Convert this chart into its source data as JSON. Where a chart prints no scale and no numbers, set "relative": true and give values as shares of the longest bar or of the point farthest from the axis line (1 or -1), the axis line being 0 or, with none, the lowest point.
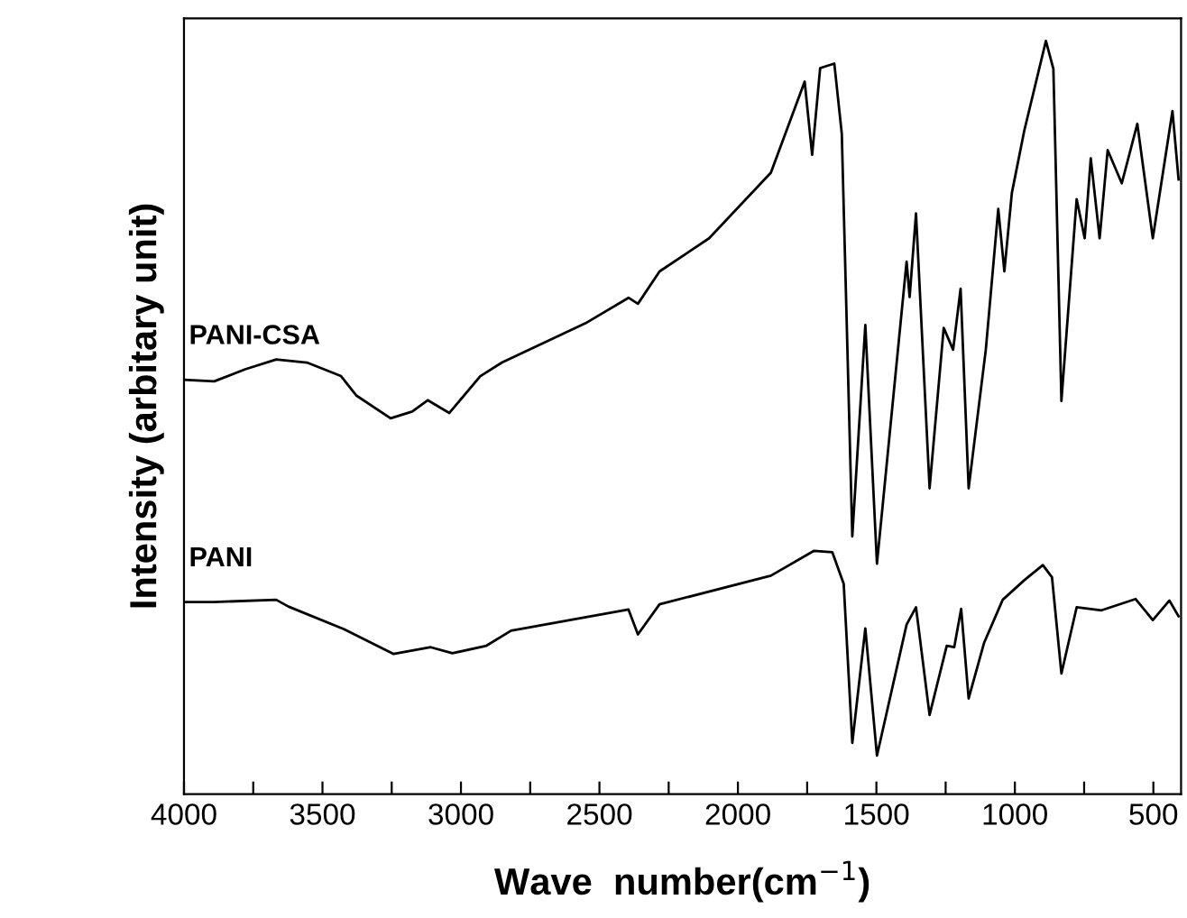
{
  "chart_data": {
    "type": "line",
    "relative": true,
    "xlabel": "Wave  number(cm$^{−1}$)",
    "ylabel": "Intensity (arbitary unit)",
    "xlim": [
      4000,
      400
    ],
    "xticks": [
      4000,
      {
        "value": 3750,
        "label": null
      },
      3500,
      {
        "value": 3250,
        "label": null
      },
      3000,
      {
        "value": 2750,
        "label": null
      },
      2500,
      {
        "value": 2250,
        "label": null
      },
      2000,
      {
        "value": 1750,
        "label": null
      },
      1500,
      {
        "value": 1250,
        "label": null
      },
      1000,
      {
        "value": 750,
        "label": null
      },
      500
    ],
    "grid": false,
    "legend": false,
    "marker": "none",
    "line_style": "solid",
    "series": [
      {
        "name": "PANI-CSA",
        "color": "#000000",
        "x": [
          4000,
          3891,
          3779,
          3667,
          3556,
          3433,
          3377,
          3254,
          3176,
          3120,
          3042,
          2930,
          2852,
          2551,
          2395,
          2361,
          2283,
          2104,
          1881,
          1759,
          1732,
          1703,
          1652,
          1625,
          1587,
          1540,
          1498,
          1391,
          1380,
          1357,
          1308,
          1257,
          1223,
          1196,
          1167,
          1105,
          1060,
          1038,
          1011,
          966,
          888,
          861,
          832,
          777,
          748,
          726,
          694,
          665,
          614,
          558,
          502,
          431,
          409
        ],
        "values": [
          0.55,
          0.548,
          0.564,
          0.577,
          0.573,
          0.555,
          0.529,
          0.499,
          0.508,
          0.523,
          0.506,
          0.555,
          0.573,
          0.625,
          0.659,
          0.651,
          0.694,
          0.738,
          0.825,
          0.946,
          0.849,
          0.964,
          0.97,
          0.877,
          0.342,
          0.623,
          0.306,
          0.707,
          0.66,
          0.771,
          0.406,
          0.619,
          0.59,
          0.671,
          0.406,
          0.59,
          0.777,
          0.694,
          0.798,
          0.881,
          1,
          0.963,
          0.522,
          0.79,
          0.738,
          0.844,
          0.738,
          0.855,
          0.811,
          0.89,
          0.738,
          0.907,
          0.816
        ]
      },
      {
        "name": "PANI",
        "color": "#000000",
        "x": [
          4000,
          3891,
          3667,
          3623,
          3422,
          3243,
          3109,
          3031,
          2908,
          2819,
          2395,
          2361,
          2283,
          1881,
          1725,
          1659,
          1618,
          1587,
          1540,
          1498,
          1391,
          1357,
          1308,
          1246,
          1219,
          1194,
          1167,
          1111,
          1044,
          966,
          899,
          866,
          832,
          777,
          687,
          564,
          502,
          442,
          409
        ],
        "values": [
          0.255,
          0.255,
          0.258,
          0.249,
          0.219,
          0.186,
          0.195,
          0.187,
          0.197,
          0.217,
          0.245,
          0.212,
          0.252,
          0.29,
          0.323,
          0.321,
          0.279,
          0.068,
          0.22,
          0.051,
          0.225,
          0.248,
          0.105,
          0.197,
          0.195,
          0.246,
          0.127,
          0.201,
          0.258,
          0.284,
          0.304,
          0.288,
          0.16,
          0.248,
          0.244,
          0.259,
          0.231,
          0.257,
          0.236
        ]
      }
    ]
  }
}
